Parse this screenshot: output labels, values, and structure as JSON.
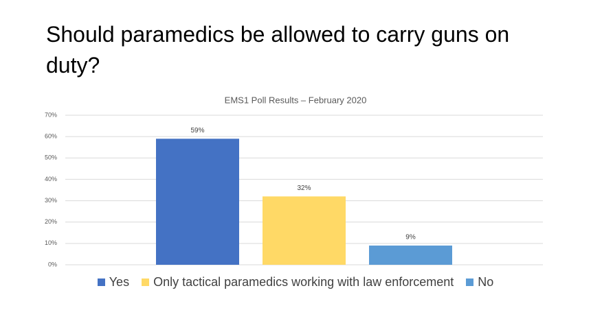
{
  "chart_data": {
    "type": "bar",
    "title": "Should paramedics be allowed to carry guns on duty?",
    "subtitle": "EMS1 Poll Results – February 2020",
    "categories": [
      null
    ],
    "series": [
      {
        "name": "Yes",
        "color": "#4472c4",
        "values": [
          59
        ],
        "value_labels": [
          "59%"
        ]
      },
      {
        "name": "Only tactical paramedics working with law enforcement",
        "color": "#ffd966",
        "values": [
          32
        ],
        "value_labels": [
          "32%"
        ]
      },
      {
        "name": "No",
        "color": "#5b9bd5",
        "values": [
          9
        ],
        "value_labels": [
          "9%"
        ]
      }
    ],
    "ylim": [
      0,
      70
    ],
    "yticks": [
      {
        "value": 0,
        "label": "0%"
      },
      {
        "value": 10,
        "label": "10%"
      },
      {
        "value": 20,
        "label": "20%"
      },
      {
        "value": 30,
        "label": "30%"
      },
      {
        "value": 40,
        "label": "40%"
      },
      {
        "value": 50,
        "label": "50%"
      },
      {
        "value": 60,
        "label": "60%"
      },
      {
        "value": 70,
        "label": "70%"
      }
    ],
    "grid": true,
    "legend": "bottom"
  }
}
